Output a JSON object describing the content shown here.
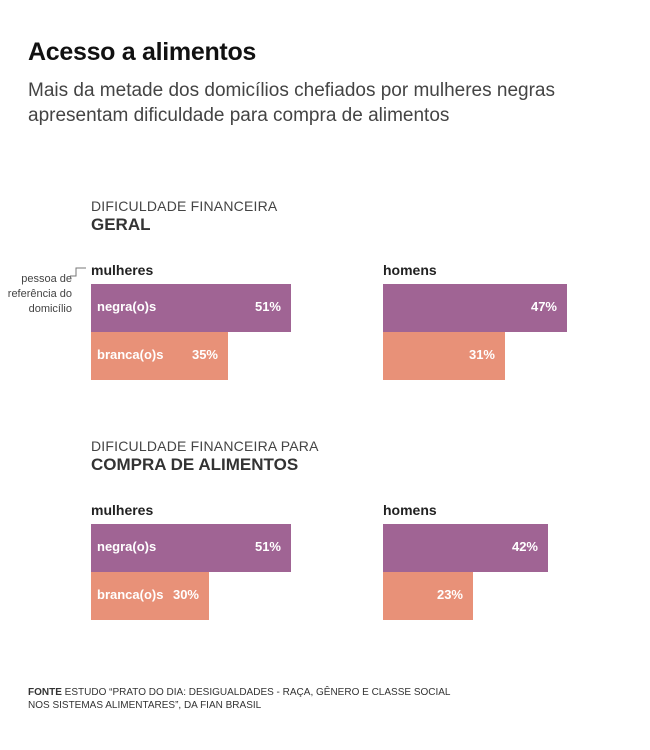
{
  "title": "Acesso a alimentos",
  "subtitle": "Mais da metade dos domicílios chefiados por mulheres negras apresentam dificuldade para compra de alimentos",
  "annotation": "pessoa de referência do domicílio",
  "source_label": "FONTE",
  "source_text": "ESTUDO “PRATO DO DIA: DESIGUALDADES - RAÇA, GÊNERO E CLASSE SOCIAL NOS SISTEMAS ALIMENTARES”, DA FIAN BRASIL",
  "colors": {
    "negra": "#a06494",
    "branca": "#e89178"
  },
  "chart_data": [
    {
      "type": "bar",
      "kicker": "DIFICULDADE FINANCEIRA",
      "heading": "GERAL",
      "groups": [
        {
          "name": "mulheres",
          "categories": [
            "negra(o)s",
            "branca(o)s"
          ],
          "values": [
            51,
            35
          ],
          "labels": [
            "51%",
            "35%"
          ]
        },
        {
          "name": "homens",
          "categories": [
            "negra(o)s",
            "branca(o)s"
          ],
          "values": [
            47,
            31
          ],
          "labels": [
            "47%",
            "31%"
          ]
        }
      ],
      "unit": "%"
    },
    {
      "type": "bar",
      "kicker": "DIFICULDADE FINANCEIRA PARA",
      "heading": "COMPRA DE ALIMENTOS",
      "groups": [
        {
          "name": "mulheres",
          "categories": [
            "negra(o)s",
            "branca(o)s"
          ],
          "values": [
            51,
            30
          ],
          "labels": [
            "51%",
            "30%"
          ]
        },
        {
          "name": "homens",
          "categories": [
            "negra(o)s",
            "branca(o)s"
          ],
          "values": [
            42,
            23
          ],
          "labels": [
            "42%",
            "23%"
          ]
        }
      ],
      "unit": "%"
    }
  ]
}
